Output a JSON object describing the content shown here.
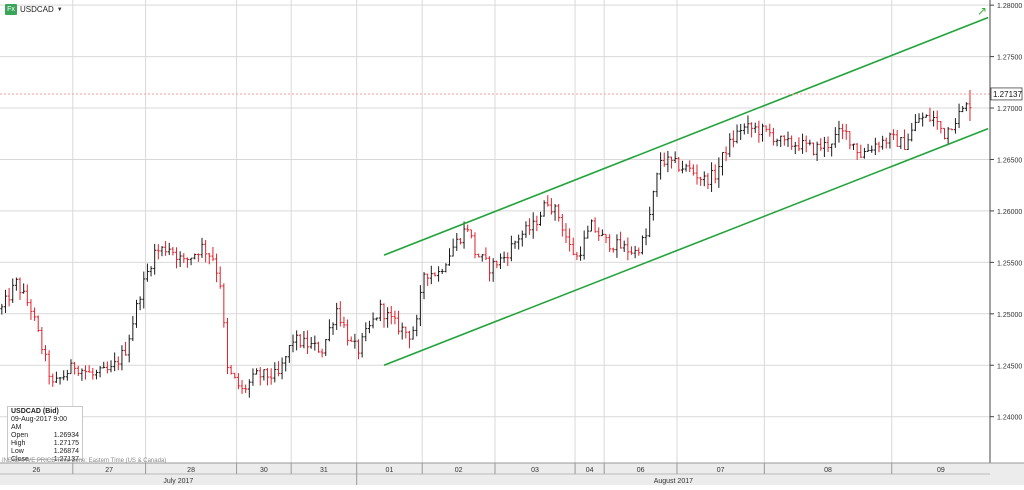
{
  "header": {
    "fx_badge": "Fx",
    "symbol": "USDCAD",
    "dropdown": "▼"
  },
  "ohlc": {
    "title": "USDCAD (Bid)",
    "datetime": "09-Aug-2017 9:00 AM",
    "rows": [
      {
        "label": "Open",
        "value": "1.26934"
      },
      {
        "label": "High",
        "value": "1.27175"
      },
      {
        "label": "Low",
        "value": "1.26874"
      },
      {
        "label": "Close",
        "value": "1.27137"
      }
    ]
  },
  "footer_note": "INDICATIVE PRICE  Time Zone: Eastern Time (US & Canada)",
  "colors": {
    "up": "#1a1a1a",
    "down": "#e0202a",
    "channel": "#22a33a",
    "last_price_line": "#ff9a9a",
    "grid": "#d9d9d9"
  },
  "chart_data": {
    "type": "ohlc",
    "symbol": "USDCAD",
    "last_price": 1.27137,
    "last_price_label": "1.27137",
    "ylim": [
      1.2355,
      1.2805
    ],
    "y_ticks": [
      1.24,
      1.245,
      1.25,
      1.255,
      1.26,
      1.265,
      1.27,
      1.275,
      1.28
    ],
    "y_tick_labels": [
      "1.24000",
      "1.24500",
      "1.25000",
      "1.25500",
      "1.26000",
      "1.26500",
      "1.27000",
      "1.27500",
      "1.28000"
    ],
    "days": [
      "26",
      "27",
      "28",
      "30",
      "31",
      "01",
      "02",
      "03",
      "04",
      "06",
      "07",
      "08",
      "09"
    ],
    "months": [
      "July 2017",
      "August 2017"
    ],
    "path": [
      [
        0,
        1.2505
      ],
      [
        4,
        1.253
      ],
      [
        8,
        1.2505
      ],
      [
        14,
        1.243
      ],
      [
        20,
        1.245
      ],
      [
        25,
        1.244
      ],
      [
        30,
        1.2445
      ],
      [
        34,
        1.2465
      ],
      [
        38,
        1.252
      ],
      [
        42,
        1.256
      ],
      [
        46,
        1.2565
      ],
      [
        50,
        1.255
      ],
      [
        55,
        1.2565
      ],
      [
        58,
        1.2555
      ],
      [
        60,
        1.253
      ],
      [
        62,
        1.2445
      ],
      [
        66,
        1.2425
      ],
      [
        70,
        1.244
      ],
      [
        76,
        1.244
      ],
      [
        80,
        1.2475
      ],
      [
        84,
        1.247
      ],
      [
        88,
        1.2465
      ],
      [
        92,
        1.2505
      ],
      [
        96,
        1.247
      ],
      [
        98,
        1.2465
      ],
      [
        100,
        1.248
      ],
      [
        104,
        1.2505
      ],
      [
        108,
        1.249
      ],
      [
        112,
        1.248
      ],
      [
        114,
        1.249
      ],
      [
        116,
        1.254
      ],
      [
        120,
        1.254
      ],
      [
        124,
        1.2565
      ],
      [
        128,
        1.2585
      ],
      [
        130,
        1.256
      ],
      [
        134,
        1.2545
      ],
      [
        138,
        1.2555
      ],
      [
        142,
        1.2575
      ],
      [
        146,
        1.2585
      ],
      [
        150,
        1.261
      ],
      [
        153,
        1.2595
      ],
      [
        156,
        1.2565
      ],
      [
        158,
        1.2555
      ],
      [
        162,
        1.2585
      ],
      [
        166,
        1.257
      ],
      [
        170,
        1.2565
      ],
      [
        174,
        1.256
      ],
      [
        177,
        1.2575
      ],
      [
        179,
        1.2615
      ],
      [
        181,
        1.265
      ],
      [
        185,
        1.2645
      ],
      [
        189,
        1.264
      ],
      [
        193,
        1.263
      ],
      [
        196,
        1.2635
      ],
      [
        199,
        1.266
      ],
      [
        203,
        1.268
      ],
      [
        207,
        1.268
      ],
      [
        211,
        1.2675
      ],
      [
        215,
        1.2665
      ],
      [
        219,
        1.2665
      ],
      [
        223,
        1.266
      ],
      [
        227,
        1.2665
      ],
      [
        230,
        1.2675
      ],
      [
        232,
        1.2675
      ],
      [
        236,
        1.2655
      ],
      [
        240,
        1.2665
      ],
      [
        244,
        1.267
      ],
      [
        248,
        1.2665
      ],
      [
        252,
        1.269
      ],
      [
        256,
        1.269
      ],
      [
        259,
        1.2675
      ],
      [
        262,
        1.269
      ],
      [
        266,
        1.2705
      ]
    ],
    "high_spikes": [
      {
        "x": 266,
        "high": 1.27175
      }
    ],
    "channel": {
      "upper": [
        [
          105,
          1.2557
        ],
        [
          271,
          1.2788
        ]
      ],
      "lower": [
        [
          105,
          1.245
        ],
        [
          271,
          1.268
        ]
      ]
    }
  }
}
